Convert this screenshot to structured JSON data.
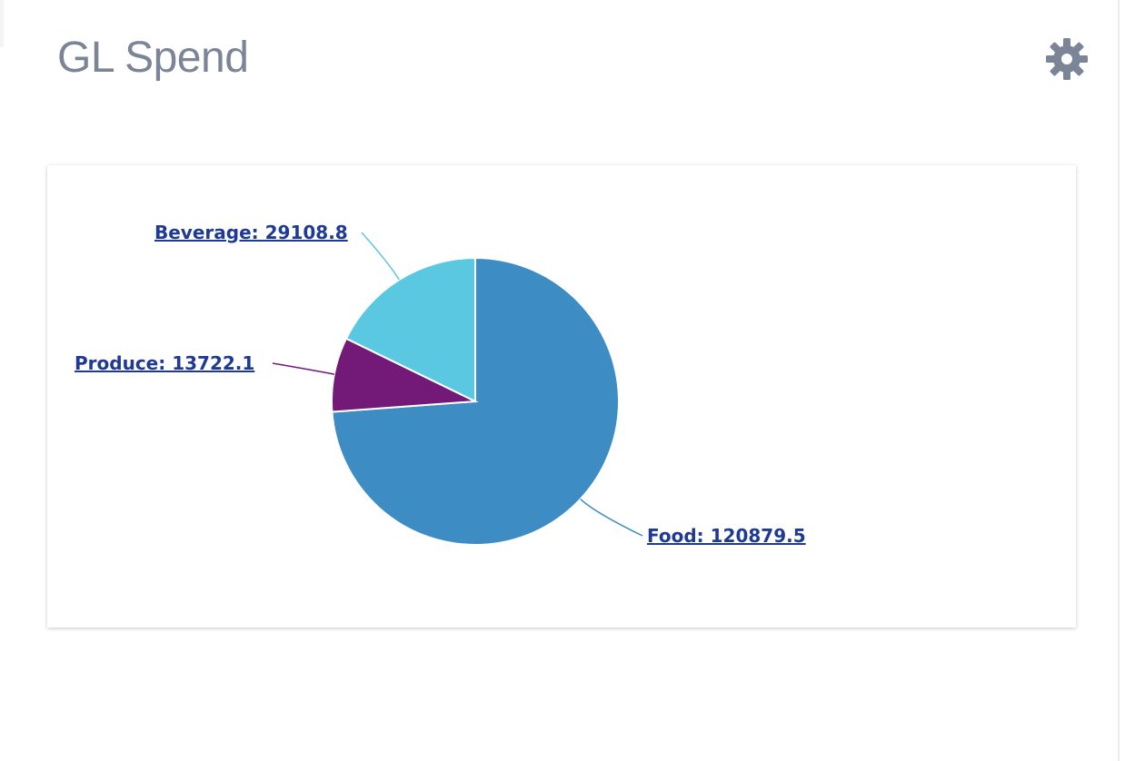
{
  "header": {
    "title": "GL Spend",
    "settings_icon": "gear-icon",
    "title_color": "#7b8597"
  },
  "chart_data": {
    "type": "pie",
    "title": "",
    "label_color": "#1f3a93",
    "slices": [
      {
        "label": "Food",
        "value": 120879.5,
        "display": "Food: 120879.5",
        "color": "#3d8cc4"
      },
      {
        "label": "Produce",
        "value": 13722.1,
        "display": "Produce: 13722.1",
        "color": "#731977"
      },
      {
        "label": "Beverage",
        "value": 29108.8,
        "display": "Beverage: 29108.8",
        "color": "#5bc8e2"
      }
    ]
  }
}
